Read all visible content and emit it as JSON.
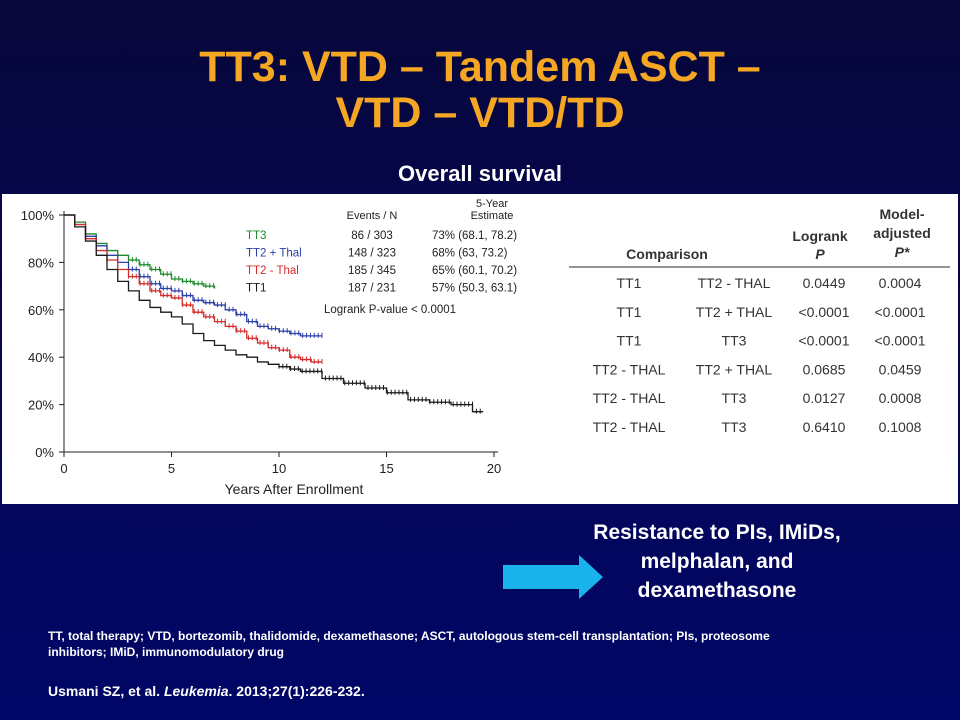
{
  "slide": {
    "title_line1": "TT3: VTD – Tandem ASCT –",
    "title_line2": "VTD – VTD/TD",
    "subtitle": "Overall survival",
    "resistance_text": [
      "Resistance to PIs, IMiDs,",
      "melphalan, and",
      "dexamethasone"
    ],
    "footnote_line1": "TT, total therapy; VTD, bortezomib, thalidomide, dexamethasone; ASCT, autologous stem-cell transplantation; PIs, proteosome",
    "footnote_line2": "inhibitors; IMiD, immunomodulatory drug",
    "reference_authors": "Usmani SZ, et al.",
    "reference_journal": "Leukemia",
    "reference_rest": ". 2013;27(1):226-232.",
    "arrow_color": "#19b2ea"
  },
  "chart_data": [
    {
      "type": "line",
      "xlabel": "Years After Enrollment",
      "ylabel": "",
      "xlim": [
        0,
        20
      ],
      "ylim": [
        0,
        100
      ],
      "x_ticks": [
        0,
        5,
        10,
        15,
        20
      ],
      "y_ticks": [
        "0%",
        "20%",
        "40%",
        "60%",
        "80%",
        "100%"
      ],
      "legend_headers": {
        "events": "Events / N",
        "estimate_line1": "5-Year",
        "estimate_line2": "Estimate"
      },
      "series": [
        {
          "name": "TT3",
          "color": "#1a8a2a",
          "events": "86 / 303",
          "estimate": "73% (68.1, 78.2)",
          "x": [
            0,
            0.5,
            1,
            1.5,
            2,
            2.5,
            3,
            3.5,
            4,
            4.5,
            5,
            5.5,
            6,
            6.5,
            7
          ],
          "y": [
            100,
            97,
            92,
            88,
            85,
            83,
            81,
            79,
            77,
            75,
            73,
            72,
            71,
            70,
            69
          ]
        },
        {
          "name": "TT2 + Thal",
          "color": "#2b3fa8",
          "events": "148 / 323",
          "estimate": "68% (63, 73.2)",
          "x": [
            0,
            0.5,
            1,
            1.5,
            2,
            2.5,
            3,
            3.5,
            4,
            4.5,
            5,
            5.5,
            6,
            6.5,
            7,
            7.5,
            8,
            8.5,
            9,
            9.5,
            10,
            10.5,
            11,
            11.5,
            12
          ],
          "y": [
            100,
            96,
            91,
            87,
            83,
            80,
            77,
            74,
            71,
            69,
            68,
            66,
            64,
            63,
            62,
            60,
            58,
            55,
            53,
            52,
            51,
            50,
            49,
            49,
            49
          ]
        },
        {
          "name": "TT2 - Thal",
          "color": "#d42a2a",
          "events": "185 / 345",
          "estimate": "65% (60.1, 70.2)",
          "x": [
            0,
            0.5,
            1,
            1.5,
            2,
            2.5,
            3,
            3.5,
            4,
            4.5,
            5,
            5.5,
            6,
            6.5,
            7,
            7.5,
            8,
            8.5,
            9,
            9.5,
            10,
            10.5,
            11,
            11.5,
            12
          ],
          "y": [
            100,
            96,
            90,
            85,
            81,
            77,
            74,
            71,
            68,
            66,
            65,
            62,
            59,
            57,
            55,
            53,
            51,
            48,
            46,
            44,
            43,
            40,
            39,
            38,
            38
          ]
        },
        {
          "name": "TT1",
          "color": "#1a1a1a",
          "events": "187 / 231",
          "estimate": "57% (50.3, 63.1)",
          "x": [
            0,
            0.5,
            1,
            1.5,
            2,
            2.5,
            3,
            3.5,
            4,
            4.5,
            5,
            5.5,
            6,
            6.5,
            7,
            7.5,
            8,
            8.5,
            9,
            9.5,
            10,
            10.5,
            11,
            12,
            13,
            14,
            15,
            16,
            17,
            18,
            19,
            19.5
          ],
          "y": [
            100,
            95,
            89,
            83,
            77,
            72,
            68,
            64,
            61,
            59,
            57,
            54,
            50,
            47,
            45,
            43,
            41,
            40,
            38,
            37,
            36,
            35,
            34,
            31,
            29,
            27,
            25,
            22,
            21,
            20,
            17,
            17
          ]
        }
      ],
      "annotation": "Logrank P-value < 0.0001"
    },
    {
      "type": "table",
      "headers": {
        "comparison": "Comparison",
        "logrank_line1": "Logrank",
        "logrank_line2": "P",
        "adjusted_line1": "Model-",
        "adjusted_line2": "adjusted",
        "adjusted_line3": "P*"
      },
      "rows": [
        [
          "TT1",
          "TT2 - THAL",
          "0.0449",
          "0.0004"
        ],
        [
          "TT1",
          "TT2 + THAL",
          "<0.0001",
          "<0.0001"
        ],
        [
          "TT1",
          "TT3",
          "<0.0001",
          "<0.0001"
        ],
        [
          "TT2 - THAL",
          "TT2 + THAL",
          "0.0685",
          "0.0459"
        ],
        [
          "TT2 - THAL",
          "TT3",
          "0.0127",
          "0.0008"
        ],
        [
          "TT2 - THAL",
          "TT3",
          "0.6410",
          "0.1008"
        ]
      ]
    }
  ]
}
